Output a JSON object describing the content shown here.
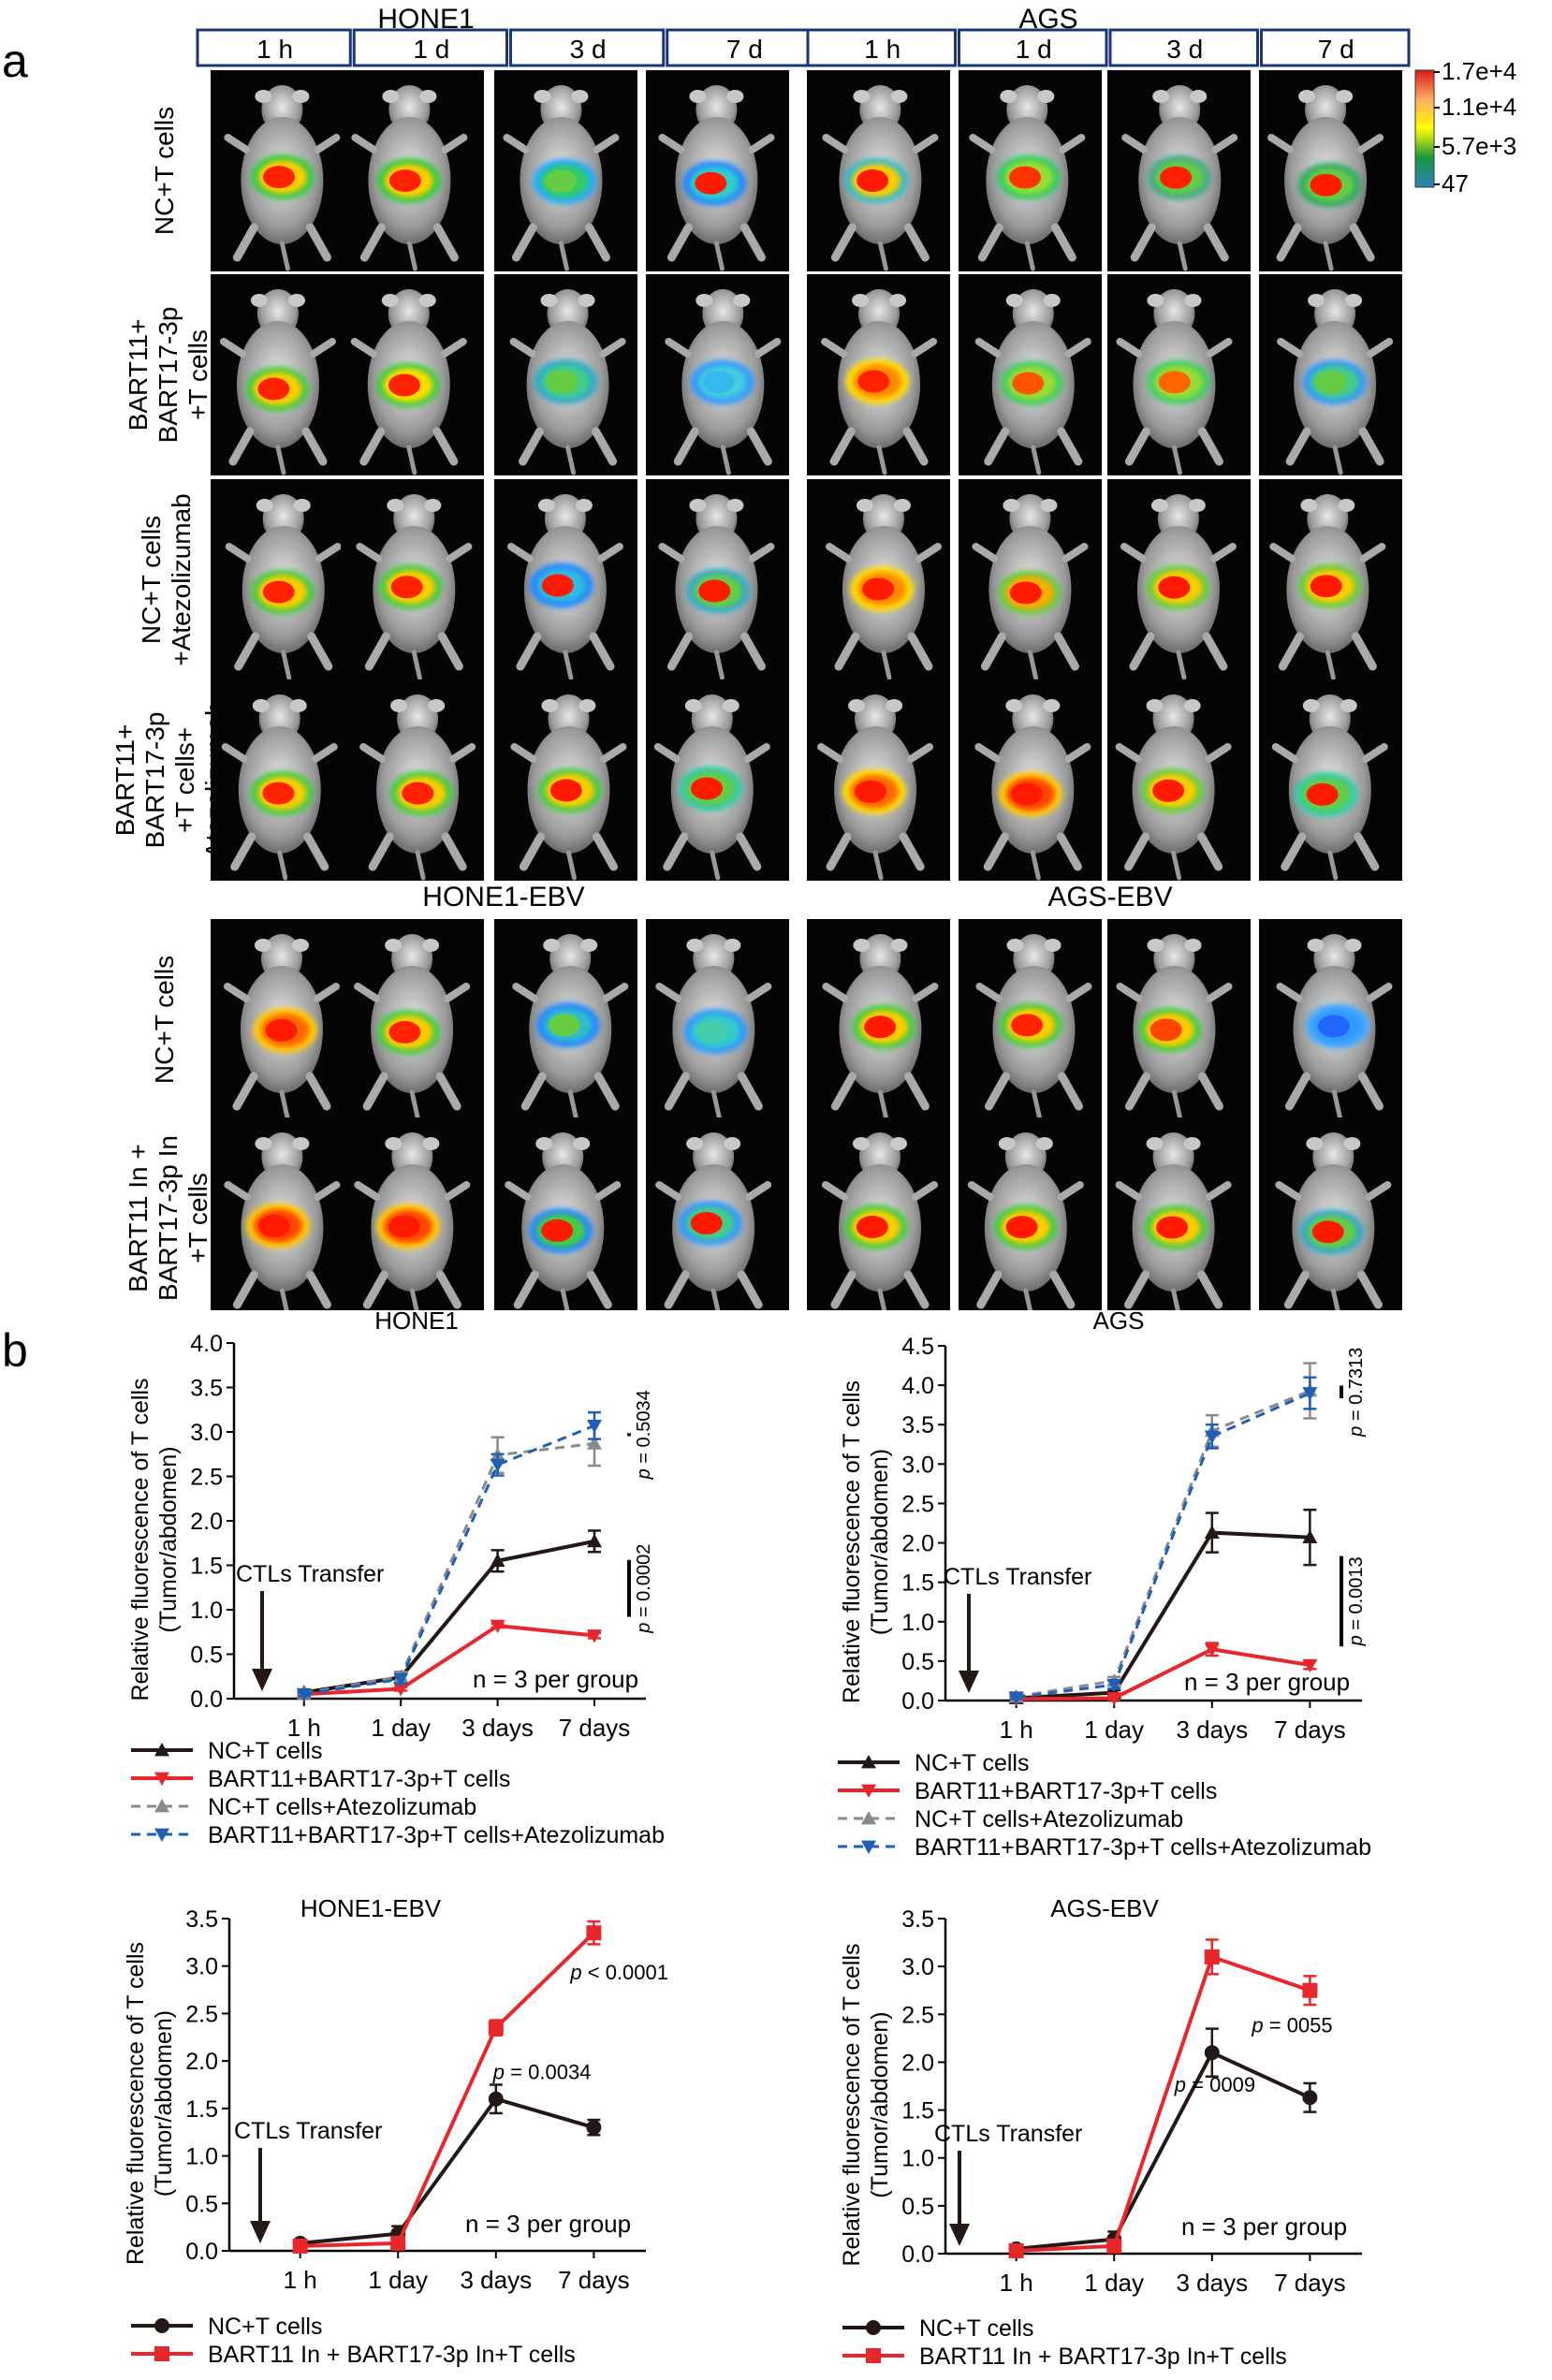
{
  "panel_a": {
    "label": "a",
    "groups": [
      "HONE1",
      "AGS",
      "HONE1-EBV",
      "AGS-EBV"
    ],
    "timepoints": [
      "1 h",
      "1 d",
      "3 d",
      "7 d"
    ],
    "colorbar": {
      "ticks": [
        "1.7e+4",
        "1.1e+4",
        "5.7e+3",
        "47"
      ],
      "colors": [
        "#d7191c",
        "#fdae61",
        "#ffff00",
        "#1a9641",
        "#2b83ba"
      ]
    },
    "rows": [
      {
        "label_lines": [
          "NC+T cells"
        ],
        "intensity": [
          [
            [
              "#ff2200",
              "#ffcc00",
              "#33cc44"
            ],
            [
              "#ff2200",
              "#ffcc00",
              "#33cc44"
            ],
            [
              "#66cc44",
              "#33cc66",
              "#22aaff"
            ],
            [
              "#ff1a00",
              "#33cccc",
              "#2288ff"
            ]
          ],
          [
            [
              "#ff1a00",
              "#ffcc00",
              "#33bbcc"
            ],
            [
              "#ff3300",
              "#99dd33",
              "#33cc66"
            ],
            [
              "#ff2200",
              "#66cc44",
              "#44aa88"
            ],
            [
              "#ff1a00",
              "#66cc44",
              "#33aa66"
            ]
          ]
        ]
      },
      {
        "label_lines": [
          "BART11+",
          "BART17-3p",
          "+T cells"
        ],
        "intensity": [
          [
            [
              "#ff2200",
              "#ffcc00",
              "#44cc44"
            ],
            [
              "#ff2200",
              "#ffdd00",
              "#44cc44"
            ],
            [
              "#66cc44",
              "#44cc88",
              "#33aacc"
            ],
            [
              "#33bbee",
              "#44ccdd",
              "#3399ff"
            ]
          ],
          [
            [
              "#ff2200",
              "#ff8800",
              "#ffdd00"
            ],
            [
              "#ff5500",
              "#99dd33",
              "#44cc66"
            ],
            [
              "#ff6600",
              "#99dd33",
              "#44cc66"
            ],
            [
              "#66cc44",
              "#44cc88",
              "#3399ff"
            ]
          ]
        ]
      },
      {
        "label_lines": [
          "NC+T cells",
          "+Atezolizumab"
        ],
        "intensity": [
          [
            [
              "#ff2200",
              "#ffcc00",
              "#44cc44"
            ],
            [
              "#ff2200",
              "#ffcc00",
              "#44cc44"
            ],
            [
              "#ff1a00",
              "#33bbdd",
              "#2288ff"
            ],
            [
              "#ff1a00",
              "#66cc44",
              "#33aacc"
            ]
          ],
          [
            [
              "#ff1a00",
              "#ff8800",
              "#ffdd00"
            ],
            [
              "#ff1a00",
              "#ffaa00",
              "#66cc44"
            ],
            [
              "#ff1a00",
              "#ffcc00",
              "#66cc44"
            ],
            [
              "#ff1a00",
              "#ffcc00",
              "#66cc44"
            ]
          ]
        ]
      },
      {
        "label_lines": [
          "BART11+",
          "BART17-3p",
          "+T cells+",
          "Atezolizumab"
        ],
        "intensity": [
          [
            [
              "#ff2200",
              "#ffcc00",
              "#44cc44"
            ],
            [
              "#ff2200",
              "#ffcc00",
              "#44cc44"
            ],
            [
              "#ff1a00",
              "#ffcc00",
              "#44cc44"
            ],
            [
              "#ff1a00",
              "#66cc44",
              "#33ccaa"
            ]
          ],
          [
            [
              "#ff1a00",
              "#ff6600",
              "#ffdd00"
            ],
            [
              "#ff1a00",
              "#ff4400",
              "#ffcc00"
            ],
            [
              "#ff1a00",
              "#ffcc00",
              "#66cc44"
            ],
            [
              "#ff1a00",
              "#66cc44",
              "#33ccaa"
            ]
          ]
        ]
      },
      {
        "label_lines": [
          "NC+T cells"
        ],
        "intensity": [
          [
            [
              "#ff1a00",
              "#ff6600",
              "#ffcc00"
            ],
            [
              "#ff2200",
              "#ffcc00",
              "#44cc44"
            ],
            [
              "#66cc44",
              "#33bbcc",
              "#2288ff"
            ],
            [
              "#44ccaa",
              "#33cccc",
              "#3399ff"
            ]
          ],
          [
            [
              "#ff1a00",
              "#ffcc00",
              "#44cc44"
            ],
            [
              "#ff2200",
              "#ffcc00",
              "#44cc44"
            ],
            [
              "#ff4400",
              "#ffcc00",
              "#44cc44"
            ],
            [
              "#2266ff",
              "#3399ff",
              "#44aaff"
            ]
          ]
        ]
      },
      {
        "label_lines": [
          "BART11 In +",
          "BART17-3p In",
          "+T cells"
        ],
        "intensity": [
          [
            [
              "#ff1a00",
              "#ff4400",
              "#ffcc00"
            ],
            [
              "#ff1a00",
              "#ff4400",
              "#ffcc00"
            ],
            [
              "#ff1a00",
              "#44cc44",
              "#2288ff"
            ],
            [
              "#ff1a00",
              "#44cc88",
              "#3399ff"
            ]
          ],
          [
            [
              "#ff1a00",
              "#ffcc00",
              "#44cc44"
            ],
            [
              "#ff1a00",
              "#ffcc00",
              "#44cc44"
            ],
            [
              "#ff1a00",
              "#ffcc00",
              "#44cc44"
            ],
            [
              "#ff1a00",
              "#66cc44",
              "#33aacc"
            ]
          ]
        ]
      }
    ]
  },
  "panel_b": {
    "label": "b"
  },
  "chart_data": [
    {
      "type": "line",
      "title": "HONE1",
      "ylabel_lines": [
        "Relative fluorescence of T cells",
        "(Tumor/abdomen)"
      ],
      "categories": [
        "1 h",
        "1 day",
        "3 days",
        "7 days"
      ],
      "ylim": [
        0,
        4.0
      ],
      "yticks": [
        "0.0",
        "0.5",
        "1.0",
        "1.5",
        "2.0",
        "2.5",
        "3.0",
        "3.5",
        "4.0"
      ],
      "series": [
        {
          "name": "NC+T cells",
          "color": "#231815",
          "style": "solid",
          "marker": "triangle-up",
          "values": [
            0.07,
            0.24,
            1.55,
            1.77
          ],
          "errors": [
            0.02,
            0.06,
            0.12,
            0.12
          ]
        },
        {
          "name": "BART11+BART17-3p+T cells",
          "color": "#e8272d",
          "style": "solid",
          "marker": "triangle-down",
          "values": [
            0.05,
            0.11,
            0.82,
            0.71
          ],
          "errors": [
            0.01,
            0.02,
            0.02,
            0.03
          ]
        },
        {
          "name": "NC+T cells+Atezolizumab",
          "color": "#8a8a8a",
          "style": "dashed",
          "marker": "triangle-up",
          "values": [
            0.06,
            0.25,
            2.74,
            2.87
          ],
          "errors": [
            0.02,
            0.05,
            0.2,
            0.25
          ]
        },
        {
          "name": "BART11+BART17-3p+T cells+Atezolizumab",
          "color": "#1f5fb4",
          "style": "dashed",
          "marker": "triangle-down",
          "values": [
            0.05,
            0.22,
            2.63,
            3.07
          ],
          "errors": [
            0.02,
            0.05,
            0.12,
            0.15
          ]
        }
      ],
      "annotations": [
        {
          "text": "p = 0.5034",
          "italic_p": true
        },
        {
          "text": "p = 0.0002",
          "italic_p": true
        },
        {
          "text": "n = 3 per group"
        },
        {
          "text": "CTLs Transfer"
        }
      ]
    },
    {
      "type": "line",
      "title": "AGS",
      "ylabel_lines": [
        "Relative fluorescence of T cells",
        "(Tumor/abdomen)"
      ],
      "categories": [
        "1 h",
        "1 day",
        "3 days",
        "7 days"
      ],
      "ylim": [
        0,
        4.5
      ],
      "yticks": [
        "0.0",
        "0.5",
        "1.0",
        "1.5",
        "2.0",
        "2.5",
        "3.0",
        "3.5",
        "4.0",
        "4.5"
      ],
      "series": [
        {
          "name": "NC+T cells",
          "color": "#231815",
          "style": "solid",
          "marker": "triangle-up",
          "values": [
            0.03,
            0.1,
            2.13,
            2.07
          ],
          "errors": [
            0.02,
            0.03,
            0.25,
            0.35
          ]
        },
        {
          "name": "BART11+BART17-3p+T cells",
          "color": "#e8272d",
          "style": "solid",
          "marker": "triangle-down",
          "values": [
            0.02,
            0.03,
            0.65,
            0.45
          ],
          "errors": [
            0.01,
            0.02,
            0.08,
            0.05
          ]
        },
        {
          "name": "NC+T cells+Atezolizumab",
          "color": "#8a8a8a",
          "style": "dashed",
          "marker": "triangle-up",
          "values": [
            0.05,
            0.25,
            3.42,
            3.93
          ],
          "errors": [
            0.02,
            0.05,
            0.2,
            0.35
          ]
        },
        {
          "name": "BART11+BART17-3p+T cells+Atezolizumab",
          "color": "#1f5fb4",
          "style": "dashed",
          "marker": "triangle-down",
          "values": [
            0.04,
            0.2,
            3.35,
            3.9
          ],
          "errors": [
            0.02,
            0.05,
            0.15,
            0.2
          ]
        }
      ],
      "annotations": [
        {
          "text": "p = 0.7313",
          "italic_p": true
        },
        {
          "text": "p = 0.0013",
          "italic_p": true
        },
        {
          "text": "n = 3 per group"
        },
        {
          "text": "CTLs Transfer"
        }
      ]
    },
    {
      "type": "line",
      "title": "HONE1-EBV",
      "ylabel_lines": [
        "Relative fluorescence of T cells",
        "(Tumor/abdomen)"
      ],
      "categories": [
        "1 h",
        "1 day",
        "3 days",
        "7 days"
      ],
      "ylim": [
        0,
        3.5
      ],
      "yticks": [
        "0.0",
        "0.5",
        "1.0",
        "1.5",
        "2.0",
        "2.5",
        "3.0",
        "3.5"
      ],
      "series": [
        {
          "name": "NC+T cells",
          "color": "#231815",
          "style": "solid",
          "marker": "circle",
          "values": [
            0.08,
            0.18,
            1.6,
            1.3
          ],
          "errors": [
            0.02,
            0.08,
            0.15,
            0.08
          ]
        },
        {
          "name": "BART11 In + BART17-3p In+T cells",
          "color": "#e8272d",
          "style": "solid",
          "marker": "square",
          "values": [
            0.05,
            0.08,
            2.35,
            3.35
          ],
          "errors": [
            0.02,
            0.03,
            0.08,
            0.12
          ]
        }
      ],
      "annotations": [
        {
          "text": "p < 0.0001",
          "italic_p": true
        },
        {
          "text": "p = 0.0034",
          "italic_p": true
        },
        {
          "text": "n = 3 per group"
        },
        {
          "text": "CTLs Transfer"
        }
      ]
    },
    {
      "type": "line",
      "title": "AGS-EBV",
      "ylabel_lines": [
        "Relative fluorescence of T cells",
        "(Tumor/abdomen)"
      ],
      "categories": [
        "1 h",
        "1 day",
        "3 days",
        "7 days"
      ],
      "ylim": [
        0,
        3.5
      ],
      "yticks": [
        "0.0",
        "0.5",
        "1.0",
        "1.5",
        "2.0",
        "2.5",
        "3.0",
        "3.5"
      ],
      "series": [
        {
          "name": "NC+T cells",
          "color": "#231815",
          "style": "solid",
          "marker": "circle",
          "values": [
            0.05,
            0.15,
            2.1,
            1.63
          ],
          "errors": [
            0.02,
            0.08,
            0.25,
            0.15
          ]
        },
        {
          "name": "BART11 In + BART17-3p In+T cells",
          "color": "#e8272d",
          "style": "solid",
          "marker": "square",
          "values": [
            0.03,
            0.08,
            3.1,
            2.75
          ],
          "errors": [
            0.02,
            0.03,
            0.18,
            0.15
          ]
        }
      ],
      "annotations": [
        {
          "text": "p = 0055",
          "italic_p": true
        },
        {
          "text": "p = 0009",
          "italic_p": true
        },
        {
          "text": "n = 3 per group"
        },
        {
          "text": "CTLs Transfer"
        }
      ]
    }
  ]
}
